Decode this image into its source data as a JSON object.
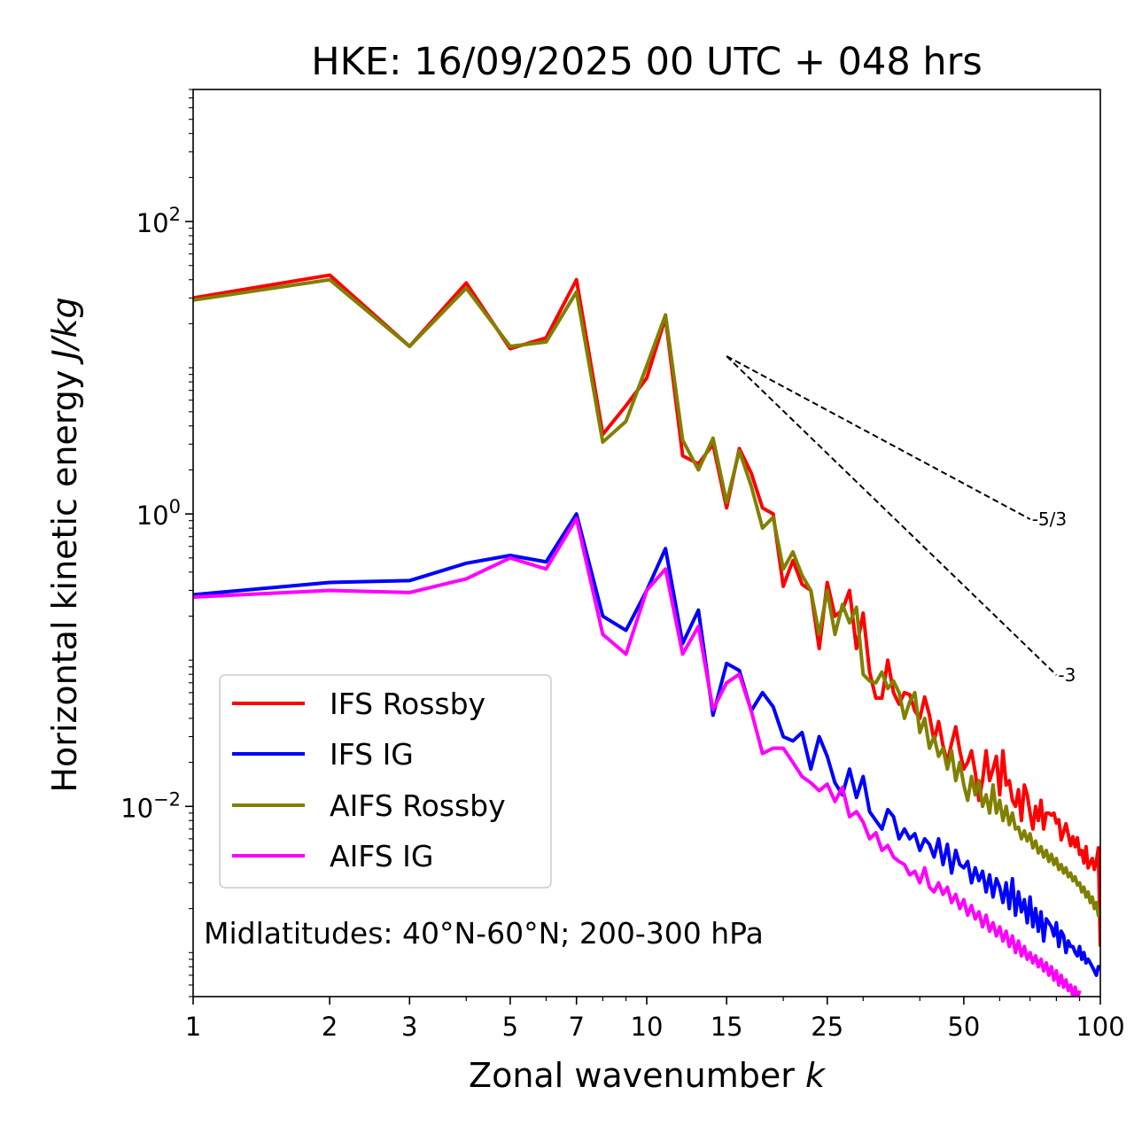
{
  "chart_data": {
    "type": "line",
    "title": "HKE: 16/09/2025 00 UTC + 048 hrs",
    "xlabel": "Zonal wavenumber",
    "xlabel_var": "k",
    "ylabel": "Horizontal kinetic energy",
    "ylabel_unit": "J/kg",
    "xscale": "log",
    "yscale": "log",
    "xlim": [
      1,
      100
    ],
    "ylim": [
      0.0005,
      800
    ],
    "xticks": [
      1,
      2,
      3,
      5,
      7,
      10,
      15,
      25,
      50,
      100
    ],
    "xtick_labels": [
      "1",
      "2",
      "3",
      "5",
      "7",
      "10",
      "15",
      "25",
      "50",
      "100"
    ],
    "yticks": [
      {
        "value": 100,
        "base": "10",
        "exp": "2"
      },
      {
        "value": 1,
        "base": "10",
        "exp": "0"
      },
      {
        "value": 0.01,
        "base": "10",
        "exp": "−2"
      }
    ],
    "annotation": "Midlatitudes: 40°N-60°N; 200-300 hPa",
    "legend_position": "lower-left",
    "reference_slopes": [
      {
        "label": "-5/3",
        "slope": -1.6667,
        "x": [
          15,
          70
        ],
        "y0": 12
      },
      {
        "label": "-3",
        "slope": -3,
        "x": [
          15,
          80
        ],
        "y0": 12
      }
    ],
    "series": [
      {
        "name": "IFS Rossby",
        "color": "#ff0000",
        "k_start": 1,
        "values": [
          30,
          43,
          14,
          38,
          13.5,
          16,
          40,
          3.5,
          5.5,
          8.5,
          22,
          2.5,
          2.2,
          3.0,
          1.1,
          2.8,
          1.9,
          1.1,
          1.0,
          0.32,
          0.48,
          0.33,
          0.3,
          0.12,
          0.34,
          0.2,
          0.22,
          0.3,
          0.12,
          0.21,
          0.083,
          0.055,
          0.055,
          0.1,
          0.06,
          0.05,
          0.06,
          0.058,
          0.045,
          0.04,
          0.056,
          0.042,
          0.028,
          0.038,
          0.026,
          0.02,
          0.027,
          0.035,
          0.024,
          0.018,
          0.02,
          0.024,
          0.017,
          0.011,
          0.015,
          0.024,
          0.015,
          0.018,
          0.022,
          0.012,
          0.024,
          0.014,
          0.015,
          0.011,
          0.01,
          0.013,
          0.008,
          0.014,
          0.012,
          0.009,
          0.007,
          0.01,
          0.008,
          0.011,
          0.007,
          0.009,
          0.009,
          0.0087,
          0.009,
          0.0077,
          0.0081,
          0.0059,
          0.0067,
          0.0076,
          0.0064,
          0.0054,
          0.0062,
          0.0053,
          0.0061,
          0.0047,
          0.005,
          0.0041,
          0.0053,
          0.0038,
          0.0041,
          0.0044,
          0.0037,
          0.0042,
          0.0052,
          0.0011
        ]
      },
      {
        "name": "IFS IG",
        "color": "#0000ff",
        "k_start": 1,
        "values": [
          0.28,
          0.34,
          0.35,
          0.46,
          0.52,
          0.47,
          1.0,
          0.2,
          0.16,
          0.3,
          0.58,
          0.13,
          0.22,
          0.042,
          0.095,
          0.085,
          0.045,
          0.06,
          0.048,
          0.03,
          0.028,
          0.032,
          0.018,
          0.03,
          0.022,
          0.0145,
          0.012,
          0.018,
          0.0115,
          0.016,
          0.0092,
          0.008,
          0.007,
          0.0095,
          0.0085,
          0.006,
          0.007,
          0.006,
          0.0065,
          0.005,
          0.006,
          0.0055,
          0.0045,
          0.006,
          0.004,
          0.0055,
          0.0035,
          0.005,
          0.004,
          0.0038,
          0.0042,
          0.003,
          0.0038,
          0.0031,
          0.0036,
          0.0026,
          0.0034,
          0.0024,
          0.0032,
          0.0028,
          0.0022,
          0.003,
          0.002,
          0.0032,
          0.0018,
          0.0026,
          0.0019,
          0.0023,
          0.0016,
          0.0024,
          0.0015,
          0.002,
          0.0014,
          0.0019,
          0.0012,
          0.0017,
          0.0016,
          0.0015,
          0.0013,
          0.0016,
          0.0011,
          0.0014,
          0.0013,
          0.001,
          0.0012,
          0.0011,
          0.0011,
          0.001,
          0.00095,
          0.0011,
          0.0009,
          0.001,
          0.00085,
          0.0009,
          0.00085,
          0.0008,
          0.00075,
          0.0007,
          0.0008,
          0.0008
        ]
      },
      {
        "name": "AIFS Rossby",
        "color": "#808000",
        "k_start": 1,
        "values": [
          29,
          40,
          14,
          35,
          14,
          15,
          33,
          3.1,
          4.3,
          10.3,
          23,
          3.2,
          2.0,
          3.3,
          1.2,
          2.7,
          1.55,
          0.8,
          0.95,
          0.42,
          0.55,
          0.38,
          0.3,
          0.15,
          0.3,
          0.15,
          0.24,
          0.18,
          0.23,
          0.08,
          0.072,
          0.07,
          0.083,
          0.064,
          0.072,
          0.06,
          0.04,
          0.052,
          0.06,
          0.032,
          0.04,
          0.025,
          0.03,
          0.022,
          0.025,
          0.018,
          0.024,
          0.015,
          0.02,
          0.014,
          0.011,
          0.016,
          0.012,
          0.015,
          0.01,
          0.012,
          0.009,
          0.014,
          0.009,
          0.011,
          0.008,
          0.01,
          0.0075,
          0.009,
          0.007,
          0.0072,
          0.006,
          0.0068,
          0.0058,
          0.0065,
          0.0052,
          0.0058,
          0.0048,
          0.0053,
          0.0045,
          0.005,
          0.0042,
          0.0047,
          0.004,
          0.0044,
          0.0037,
          0.004,
          0.0035,
          0.0038,
          0.0033,
          0.0035,
          0.0031,
          0.0033,
          0.0029,
          0.003,
          0.0026,
          0.0028,
          0.0024,
          0.0026,
          0.0022,
          0.0024,
          0.002,
          0.0022,
          0.0018,
          0.0019
        ]
      },
      {
        "name": "AIFS IG",
        "color": "#ff00ff",
        "k_start": 1,
        "values": [
          0.27,
          0.3,
          0.29,
          0.36,
          0.5,
          0.42,
          0.93,
          0.15,
          0.11,
          0.3,
          0.42,
          0.11,
          0.17,
          0.046,
          0.07,
          0.08,
          0.045,
          0.023,
          0.025,
          0.025,
          0.02,
          0.016,
          0.0145,
          0.0128,
          0.0142,
          0.0108,
          0.0135,
          0.0085,
          0.0092,
          0.0078,
          0.006,
          0.0066,
          0.005,
          0.0054,
          0.0045,
          0.0042,
          0.004,
          0.0034,
          0.0036,
          0.003,
          0.0038,
          0.0028,
          0.0026,
          0.003,
          0.0025,
          0.0028,
          0.0022,
          0.0025,
          0.002,
          0.0023,
          0.0018,
          0.0021,
          0.0017,
          0.0019,
          0.0015,
          0.0018,
          0.0014,
          0.0016,
          0.0013,
          0.0015,
          0.0012,
          0.0014,
          0.0011,
          0.0013,
          0.001,
          0.0012,
          0.00095,
          0.0011,
          0.0009,
          0.001,
          0.00085,
          0.00095,
          0.0008,
          0.0009,
          0.00075,
          0.00085,
          0.0007,
          0.0008,
          0.00065,
          0.00075,
          0.0006,
          0.0007,
          0.00058,
          0.00065,
          0.00055,
          0.0006,
          0.0005,
          0.00058,
          0.00048,
          0.00055
        ]
      }
    ]
  }
}
